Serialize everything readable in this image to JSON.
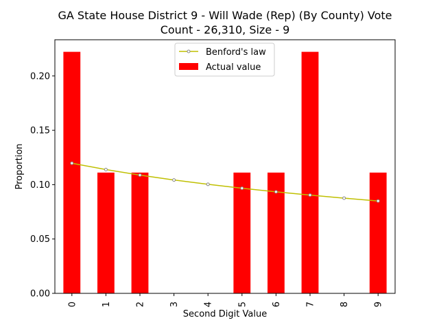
{
  "chart_data": {
    "type": "bar",
    "title_line1": "GA State House District 9 - Will Wade (Rep) (By County) Vote",
    "title_line2": "Count - 26,310, Size - 9",
    "xlabel": "Second Digit Value",
    "ylabel": "Proportion",
    "categories": [
      "0",
      "1",
      "2",
      "3",
      "4",
      "5",
      "6",
      "7",
      "8",
      "9"
    ],
    "ylim": [
      0,
      0.2333
    ],
    "yticks": [
      0.0,
      0.05,
      0.1,
      0.15,
      0.2
    ],
    "ytick_labels": [
      "0.00",
      "0.05",
      "0.10",
      "0.15",
      "0.20"
    ],
    "series": [
      {
        "name": "Actual value",
        "kind": "bar",
        "color": "#ff0000",
        "values": [
          0.2222,
          0.1111,
          0.1111,
          0,
          0,
          0.1111,
          0.1111,
          0.2222,
          0,
          0.1111
        ]
      },
      {
        "name": "Benford's law",
        "kind": "line",
        "color": "#bfbf00",
        "values": [
          0.1197,
          0.1139,
          0.1088,
          0.1043,
          0.1003,
          0.0967,
          0.0934,
          0.0904,
          0.0876,
          0.085
        ]
      }
    ],
    "legend_position": "top-center",
    "grid": false
  }
}
